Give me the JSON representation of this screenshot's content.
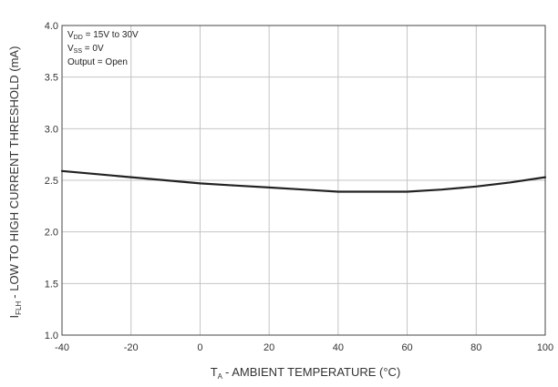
{
  "chart_data": {
    "type": "line",
    "title": "",
    "xlabel": {
      "main": "T",
      "sub": "A",
      "rest": "- AMBIENT TEMPERATURE (°C)"
    },
    "ylabel": {
      "main": "I",
      "sub": "FLH",
      "rest": "- LOW TO HIGH CURRENT THRESHOLD (mA)"
    },
    "xlim": [
      -40,
      100
    ],
    "ylim": [
      1.0,
      4.0
    ],
    "x_ticks": [
      -40,
      -20,
      0,
      20,
      40,
      60,
      80,
      100
    ],
    "y_ticks": [
      1.0,
      1.5,
      2.0,
      2.5,
      3.0,
      3.5,
      4.0
    ],
    "grid": true,
    "annotations": [
      {
        "main": "V",
        "sub": "DD",
        "rest": " = 15V to 30V"
      },
      {
        "main": "V",
        "sub": "SS",
        "rest": " = 0V"
      },
      {
        "main": "Output = Open",
        "sub": "",
        "rest": ""
      }
    ],
    "series": [
      {
        "x": [
          -40,
          -30,
          -20,
          -10,
          0,
          10,
          20,
          30,
          40,
          50,
          60,
          70,
          80,
          90,
          100
        ],
        "y": [
          2.59,
          2.56,
          2.53,
          2.5,
          2.47,
          2.45,
          2.43,
          2.41,
          2.39,
          2.39,
          2.39,
          2.41,
          2.44,
          2.48,
          2.53
        ]
      }
    ],
    "colors": {
      "line": "#222222",
      "grid": "#c4c4c4",
      "frame": "#444444"
    }
  }
}
